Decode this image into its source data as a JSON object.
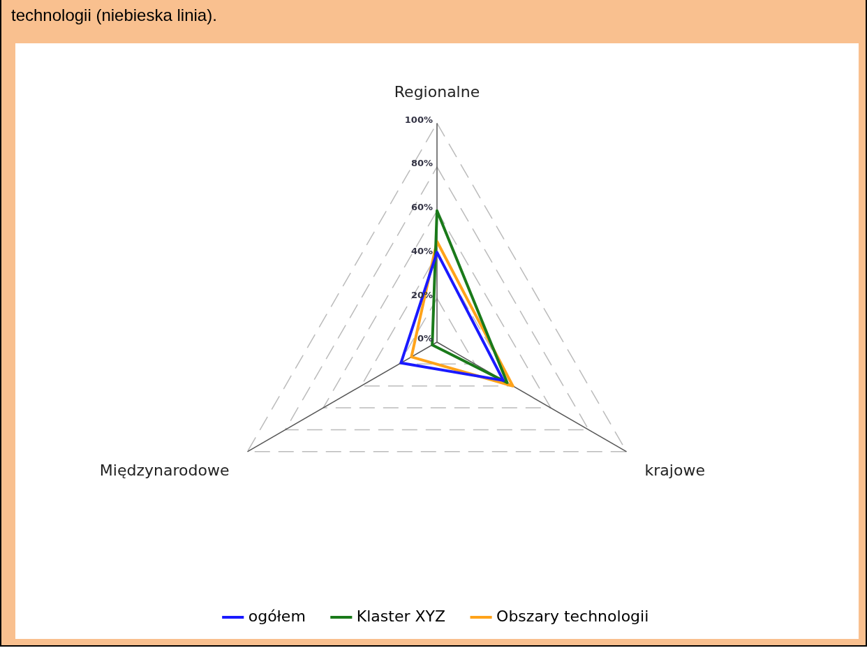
{
  "chart_data": {
    "type": "radar",
    "title": "technologii (niebieska linia).",
    "categories": [
      "Regionalne",
      "krajowe",
      "Międzynarodowe"
    ],
    "series": [
      {
        "name": "ogółem",
        "color": "#1a1aff",
        "values": [
          41,
          35,
          19
        ]
      },
      {
        "name": "Klaster XYZ",
        "color": "#1a7a1a",
        "values": [
          60,
          37,
          2.5
        ]
      },
      {
        "name": "Obszary technologii",
        "color": "#ffa31a",
        "values": [
          46,
          40,
          13.5
        ]
      }
    ],
    "ylim": [
      0,
      100
    ],
    "yticks": [
      {
        "value": 0,
        "label": "0%"
      },
      {
        "value": 20,
        "label": "20%"
      },
      {
        "value": 40,
        "label": "40%"
      },
      {
        "value": 60,
        "label": "60%"
      },
      {
        "value": 80,
        "label": "80%"
      },
      {
        "value": 100,
        "label": "100%"
      }
    ],
    "grid": true,
    "legend": "bottom",
    "marker": "none"
  }
}
